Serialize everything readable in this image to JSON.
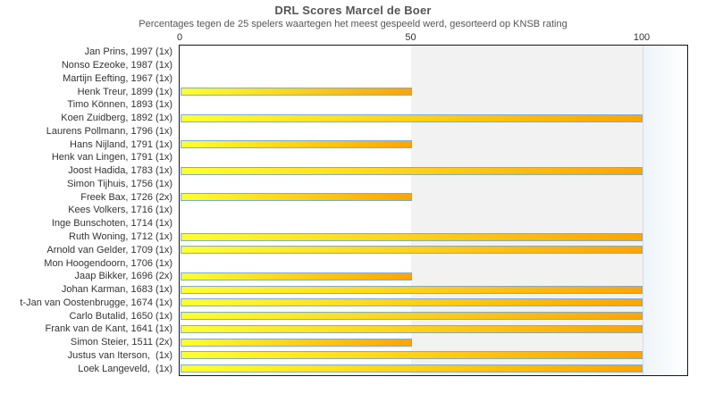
{
  "chart_data": {
    "type": "bar",
    "orientation": "horizontal",
    "title": "DRL Scores Marcel de Boer",
    "subtitle": "Percentages tegen de 25 spelers waartegen het meest gespeeld werd, gesorteerd op KNSB rating",
    "xlabel": "",
    "ylabel": "",
    "xlim": [
      0,
      110
    ],
    "x_ticks": [
      0,
      50,
      100
    ],
    "legend_position": "none",
    "grid": "single vertical gridline at 100; shaded background zone from 50 to 100; pale blue band beyond 100",
    "categories": [
      "Jan Prins, 1997 (1x)",
      "Nonso Ezeoke, 1987 (1x)",
      "Martijn Eefting, 1967 (1x)",
      "Henk Treur, 1899 (1x)",
      "Timo Können, 1893 (1x)",
      "Koen Zuidberg, 1892 (1x)",
      "Laurens Pollmann, 1796 (1x)",
      "Hans Nijland, 1791 (1x)",
      "Henk van Lingen, 1791 (1x)",
      "Joost Hadida, 1783 (1x)",
      "Simon Tijhuis, 1756 (1x)",
      "Freek Bax, 1726 (2x)",
      "Kees Volkers, 1716 (1x)",
      "Inge Bunschoten, 1714 (1x)",
      "Ruth Woning, 1712 (1x)",
      "Arnold van Gelder, 1709 (1x)",
      "Mon Hoogendoorn, 1706 (1x)",
      "Jaap Bikker, 1696 (2x)",
      "Johan Karman, 1683 (1x)",
      "t-Jan van Oostenbrugge, 1674 (1x)",
      "Carlo Butalid, 1650 (1x)",
      "Frank van de Kant, 1641 (1x)",
      "Simon Steier, 1511 (2x)",
      "Justus van Iterson,  (1x)",
      "Loek Langeveld,  (1x)"
    ],
    "values": [
      0,
      0,
      0,
      50,
      0,
      100,
      0,
      50,
      0,
      100,
      0,
      50,
      0,
      0,
      100,
      100,
      0,
      50,
      100,
      100,
      100,
      100,
      50,
      100,
      100
    ],
    "colors": {
      "bar_gradient_start": "#ffff2e",
      "bar_gradient_end": "#ffa400",
      "bar_border": "#7cabd5",
      "zone_50_100": "#f2f2f2",
      "band_beyond_100_start": "#edf4f9",
      "band_beyond_100_end": "#ffffff",
      "plot_border": "#161616",
      "text": "#333333",
      "title_text": "#555555"
    }
  }
}
